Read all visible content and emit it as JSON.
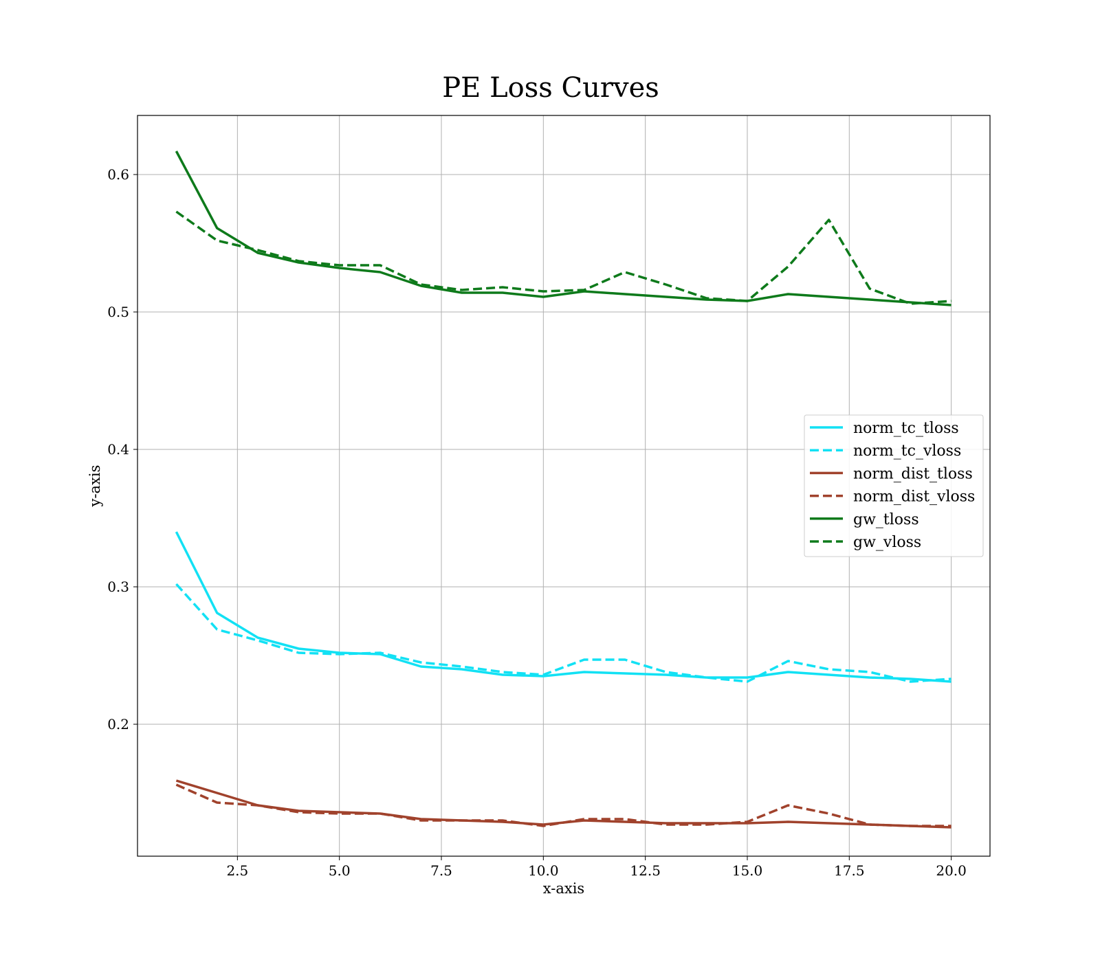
{
  "chart_data": {
    "type": "line",
    "title": "PE Loss Curves",
    "xlabel": "x-axis",
    "ylabel": "y-axis",
    "xlim": [
      0.05,
      20.95
    ],
    "ylim": [
      0.104,
      0.643
    ],
    "xticks": [
      2.5,
      5.0,
      7.5,
      10.0,
      12.5,
      15.0,
      17.5,
      20.0
    ],
    "xtick_labels": [
      "2.5",
      "5.0",
      "7.5",
      "10.0",
      "12.5",
      "15.0",
      "17.5",
      "20.0"
    ],
    "yticks": [
      0.2,
      0.3,
      0.4,
      0.5,
      0.6
    ],
    "ytick_labels": [
      "0.2",
      "0.3",
      "0.4",
      "0.5",
      "0.6"
    ],
    "grid": true,
    "legend_position": "center-right",
    "x": [
      1,
      2,
      3,
      4,
      5,
      6,
      7,
      8,
      9,
      10,
      11,
      12,
      13,
      14,
      15,
      16,
      17,
      18,
      19,
      20
    ],
    "series": [
      {
        "name": "norm_tc_tloss",
        "color": "#12E1F4",
        "style": "solid",
        "values": [
          0.34,
          0.281,
          0.263,
          0.255,
          0.252,
          0.251,
          0.242,
          0.24,
          0.236,
          0.235,
          0.238,
          0.237,
          0.236,
          0.234,
          0.234,
          0.238,
          0.236,
          0.234,
          0.233,
          0.231
        ]
      },
      {
        "name": "norm_tc_vloss",
        "color": "#12E1F4",
        "style": "dashed",
        "values": [
          0.302,
          0.269,
          0.261,
          0.252,
          0.251,
          0.252,
          0.245,
          0.242,
          0.238,
          0.236,
          0.247,
          0.247,
          0.238,
          0.234,
          0.231,
          0.246,
          0.24,
          0.238,
          0.231,
          0.233
        ]
      },
      {
        "name": "norm_dist_tloss",
        "color": "#A0422C",
        "style": "solid",
        "values": [
          0.159,
          0.15,
          0.141,
          0.137,
          0.136,
          0.135,
          0.131,
          0.13,
          0.129,
          0.127,
          0.13,
          0.129,
          0.128,
          0.128,
          0.128,
          0.129,
          0.128,
          0.127,
          0.126,
          0.125
        ]
      },
      {
        "name": "norm_dist_vloss",
        "color": "#A0422C",
        "style": "dashed",
        "values": [
          0.156,
          0.143,
          0.141,
          0.136,
          0.135,
          0.135,
          0.13,
          0.13,
          0.13,
          0.126,
          0.131,
          0.131,
          0.127,
          0.127,
          0.129,
          0.141,
          0.135,
          0.127,
          0.126,
          0.126
        ]
      },
      {
        "name": "gw_tloss",
        "color": "#0E7A1B",
        "style": "solid",
        "values": [
          0.617,
          0.561,
          0.543,
          0.536,
          0.532,
          0.529,
          0.519,
          0.514,
          0.514,
          0.511,
          0.515,
          0.513,
          0.511,
          0.509,
          0.508,
          0.513,
          0.511,
          0.509,
          0.507,
          0.505
        ]
      },
      {
        "name": "gw_vloss",
        "color": "#0E7A1B",
        "style": "dashed",
        "values": [
          0.573,
          0.552,
          0.545,
          0.537,
          0.534,
          0.534,
          0.52,
          0.516,
          0.518,
          0.515,
          0.516,
          0.529,
          0.52,
          0.51,
          0.508,
          0.533,
          0.567,
          0.517,
          0.506,
          0.508
        ]
      }
    ]
  }
}
